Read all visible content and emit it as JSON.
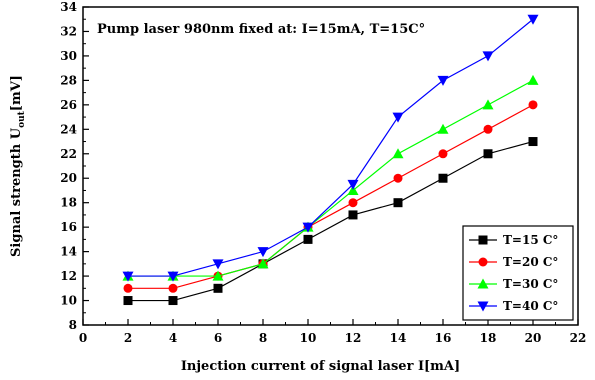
{
  "chart_data": {
    "type": "line",
    "annotation": "Pump laser 980nm fixed at: I=15mA, T=15C°",
    "xlabel": "Injection current of signal laser  I[mA]",
    "ylabel_main": "Signal strength U",
    "ylabel_sub": "out",
    "ylabel_unit": "[mV]",
    "xlim": [
      0,
      22
    ],
    "ylim": [
      8,
      34
    ],
    "x_ticks": [
      0,
      2,
      4,
      6,
      8,
      10,
      12,
      14,
      16,
      18,
      20,
      22
    ],
    "y_ticks": [
      8,
      10,
      12,
      14,
      16,
      18,
      20,
      22,
      24,
      26,
      28,
      30,
      32,
      34
    ],
    "x": [
      2,
      4,
      6,
      8,
      10,
      12,
      14,
      16,
      18,
      20
    ],
    "legend_position": "bottom-right",
    "grid": false,
    "series": [
      {
        "name": "T=15 C°",
        "marker": "square",
        "color": "#000000",
        "values": [
          10,
          10,
          11,
          13,
          15,
          17,
          18,
          20,
          22,
          23
        ]
      },
      {
        "name": "T=20 C°",
        "marker": "circle",
        "color": "#ff0000",
        "values": [
          11,
          11,
          12,
          13,
          16,
          18,
          20,
          22,
          24,
          26
        ]
      },
      {
        "name": "T=30 C°",
        "marker": "triangle-up",
        "color": "#00ff00",
        "values": [
          12,
          12,
          12,
          13,
          16,
          19,
          22,
          24,
          26,
          28
        ]
      },
      {
        "name": "T=40 C°",
        "marker": "triangle-down",
        "color": "#0000ff",
        "values": [
          12,
          12,
          13,
          14,
          16,
          19.5,
          25,
          28,
          30,
          33
        ]
      }
    ]
  }
}
